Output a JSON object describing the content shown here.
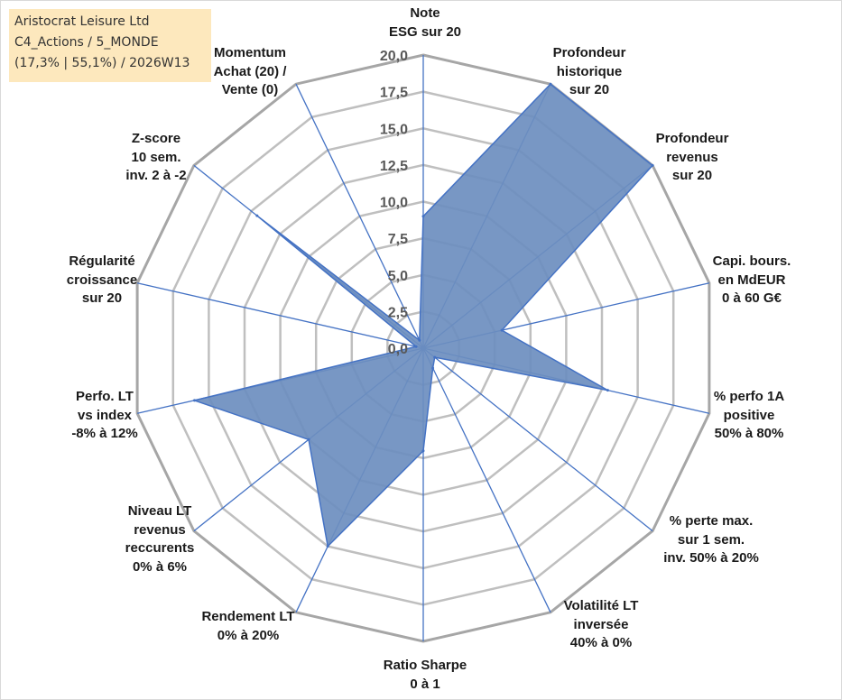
{
  "title_box": {
    "lines": [
      "Aristocrat Leisure Ltd",
      "C4_Actions / 5_MONDE",
      "(17,3% | 55,1%) / 2026W13"
    ]
  },
  "chart_data": {
    "type": "radar",
    "title": "",
    "range": [
      0,
      20
    ],
    "ticks": [
      "0,0",
      "2,5",
      "5,0",
      "7,5",
      "10,0",
      "12,5",
      "15,0",
      "17,5",
      "20,0"
    ],
    "axes": [
      {
        "lines": [
          "Note",
          "ESG sur 20"
        ]
      },
      {
        "lines": [
          "Profondeur",
          "historique",
          "sur 20"
        ]
      },
      {
        "lines": [
          "Profondeur",
          "revenus",
          "sur 20"
        ]
      },
      {
        "lines": [
          "Capi. bours.",
          "en MdEUR",
          "0 à 60 G€"
        ]
      },
      {
        "lines": [
          "% perfo 1A",
          "positive",
          "50% à 80%"
        ]
      },
      {
        "lines": [
          "% perte max.",
          "sur 1 sem.",
          "inv. 50% à 20%"
        ]
      },
      {
        "lines": [
          "Volatilité LT",
          "inversée",
          "40% à 0%"
        ]
      },
      {
        "lines": [
          "Ratio Sharpe",
          "0 à 1"
        ]
      },
      {
        "lines": [
          "Rendement LT",
          "0% à 20%"
        ]
      },
      {
        "lines": [
          "Niveau LT",
          "revenus",
          "reccurents",
          "0% à 6%"
        ]
      },
      {
        "lines": [
          "Perfo. LT",
          "vs index",
          "-8% à 12%"
        ]
      },
      {
        "lines": [
          "Régularité",
          "croissance",
          "sur 20"
        ]
      },
      {
        "lines": [
          "Z-score",
          "10 sem.",
          "inv. 2 à -2"
        ]
      },
      {
        "lines": [
          "Momentum",
          "Achat (20) /",
          "Vente (0)"
        ]
      }
    ],
    "series": [
      {
        "name": "Aristocrat Leisure Ltd",
        "values": [
          9.0,
          20.0,
          20.0,
          5.5,
          12.9,
          1.0,
          1.5,
          7.0,
          15.0,
          10.0,
          16.0,
          0.5,
          14.5,
          0.6
        ]
      }
    ],
    "colors": {
      "fill": "#6c8ebf",
      "outline": "#4472c4",
      "spoke": "#4472c4",
      "grid": "#bfbfbf",
      "grid_outer": "#a6a6a6"
    }
  }
}
